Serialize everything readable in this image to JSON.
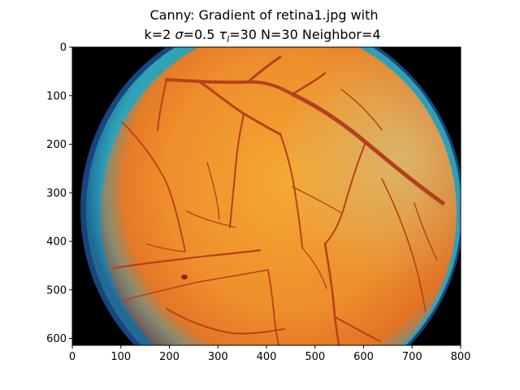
{
  "figure": {
    "title_line1": "Canny: Gradient of retina1.jpg with",
    "title_line2_prefix": "k=2 ",
    "title_sigma_symbol": "σ",
    "title_sigma_value": "=0.5 ",
    "title_tau_symbol": "τ",
    "title_tau_subscript": "l",
    "title_tau_value": "=30 N=30 Neighbor=4"
  },
  "image": {
    "subject": "retinal fundus photograph",
    "colors": {
      "background": "#000000",
      "retina_center": "#f0a030",
      "retina_mid": "#e8802a",
      "retina_edge": "#c85a20",
      "rim_teal": "#2aa6b8",
      "rim_blue": "#1a4f8a",
      "vessel": "#b83a18"
    }
  },
  "axes": {
    "x_ticks": [
      "0",
      "100",
      "200",
      "300",
      "400",
      "500",
      "600",
      "700",
      "800"
    ],
    "y_ticks": [
      "0",
      "100",
      "200",
      "300",
      "400",
      "500",
      "600"
    ],
    "x_range": [
      0,
      800
    ],
    "y_range": [
      0,
      620
    ]
  }
}
